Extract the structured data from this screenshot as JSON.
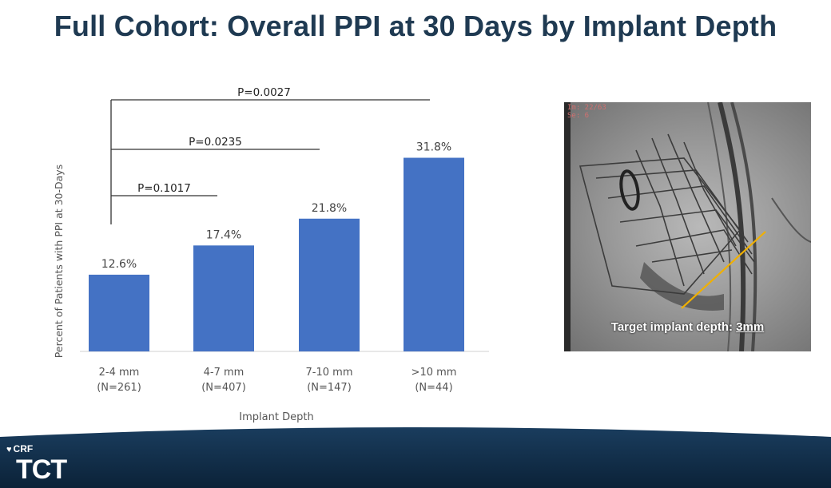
{
  "slide": {
    "title": "Full Cohort: Overall PPI at 30 Days by Implant Depth"
  },
  "colors": {
    "bar": "#4472c4",
    "title": "#1f3a52",
    "bracket": "#333333",
    "footer": "#0e2a45",
    "guide_line": "#f0b000"
  },
  "chart_data": {
    "type": "bar",
    "categories": [
      "2-4 mm",
      "4-7 mm",
      "7-10 mm",
      ">10 mm"
    ],
    "category_n": [
      "(N=261)",
      "(N=407)",
      "(N=147)",
      "(N=44)"
    ],
    "values": [
      12.6,
      17.4,
      21.8,
      31.8
    ],
    "value_labels": [
      "12.6%",
      "17.4%",
      "21.8%",
      "31.8%"
    ],
    "xlabel": "Implant Depth",
    "ylabel": "Percent of Patients with PPI at 30-Days",
    "ylim": [
      0,
      40
    ],
    "grid": false,
    "comparisons": [
      {
        "label": "P=0.1017",
        "from": "2-4 mm",
        "to": "4-7 mm"
      },
      {
        "label": "P=0.0235",
        "from": "2-4 mm",
        "to": "7-10 mm"
      },
      {
        "label": "P=0.0027",
        "from": "2-4 mm",
        "to": ">10 mm"
      }
    ]
  },
  "image": {
    "caption_prefix": "Target implant depth: ",
    "caption_value": "3mm",
    "corner_line1": "Im: 22/63",
    "corner_line2": "Se: 6"
  },
  "footer": {
    "org": "CRF",
    "event": "TCT",
    "logo_icon": "heart-icon"
  }
}
